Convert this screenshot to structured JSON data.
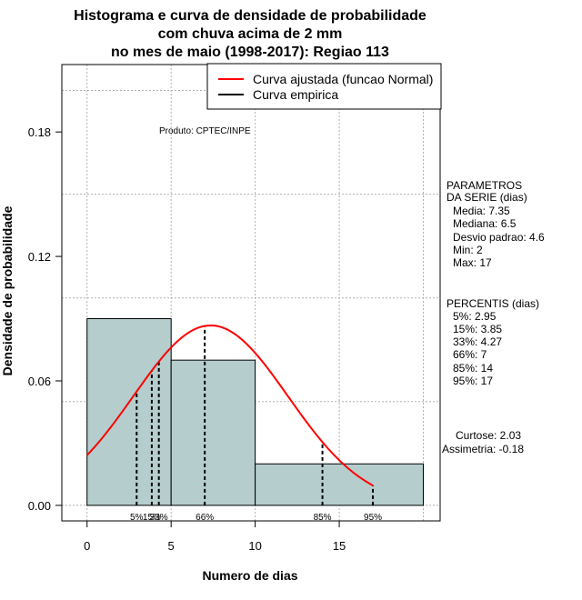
{
  "chart_data": {
    "type": "bar",
    "title_lines": [
      "Histograma e curva de densidade de probabilidade",
      "com chuva acima de 2 mm",
      "no mes de maio (1998-2017): Regiao 113"
    ],
    "xlabel": "Numero de dias",
    "ylabel": "Densidade de probabilidade",
    "xlim": [
      -1.5,
      21.0
    ],
    "ylim": [
      -0.0075,
      0.2125
    ],
    "x_ticks": [
      0,
      5,
      10,
      15
    ],
    "y_ticks": [
      0.0,
      0.06,
      0.12,
      0.18
    ],
    "y_tick_labels": [
      "0.00",
      "0.06",
      "0.12",
      "0.18"
    ],
    "x_grid": [
      0,
      5,
      10,
      15,
      20
    ],
    "y_grid": [
      0.0,
      0.05,
      0.1,
      0.15,
      0.2
    ],
    "grid": true,
    "bins": [
      {
        "start": 0,
        "end": 5,
        "density": 0.09
      },
      {
        "start": 5,
        "end": 10,
        "density": 0.07
      },
      {
        "start": 10,
        "end": 20,
        "density": 0.02
      }
    ],
    "normal_fit": {
      "mean": 7.35,
      "sd": 4.6,
      "x_range": [
        0,
        17
      ]
    },
    "legend": {
      "position": "top-right",
      "items": [
        {
          "label": "Curva ajustada (funcao Normal)",
          "color": "#ff0000"
        },
        {
          "label": "Curva empirica",
          "color": "#000000"
        }
      ]
    },
    "annotation": "Produto: CPTEC/INPE",
    "percentile_lines": [
      {
        "label": "5%",
        "x": 2.95
      },
      {
        "label": "15%",
        "x": 3.85
      },
      {
        "label": "33%",
        "x": 4.27
      },
      {
        "label": "66%",
        "x": 7.0
      },
      {
        "label": "85%",
        "x": 14.0
      },
      {
        "label": "95%",
        "x": 17.0
      }
    ],
    "percentile_bottom_labels": [
      {
        "text": "5%",
        "x": 2.95
      },
      {
        "text": "15%",
        "x": 3.85
      },
      {
        "text": "33%",
        "x": 4.27
      },
      {
        "text": "66%",
        "x": 7.0
      },
      {
        "text": "85%",
        "x": 14.0
      },
      {
        "text": "95%",
        "x": 17.0
      }
    ],
    "parametros": {
      "header": [
        "PARAMETROS",
        "DA SERIE (dias)"
      ],
      "items": [
        "Media: 7.35",
        "Mediana: 6.5",
        "Desvio padrao: 4.6",
        "Min: 2",
        "Max: 17"
      ]
    },
    "percentis": {
      "header": "PERCENTIS (dias)",
      "items": [
        "5%: 2.95",
        "15%: 3.85",
        "33%: 4.27",
        "66%: 7",
        "85%: 14",
        "95%: 17"
      ]
    },
    "stats": [
      "Curtose: 2.03",
      "Assimetria: -0.18"
    ]
  },
  "colors": {
    "bar_fill": "#b5cdcd",
    "bar_stroke": "#000000",
    "curve": "#ff0000",
    "grid": "#b0b0b0",
    "percentile_line": "#000000"
  }
}
